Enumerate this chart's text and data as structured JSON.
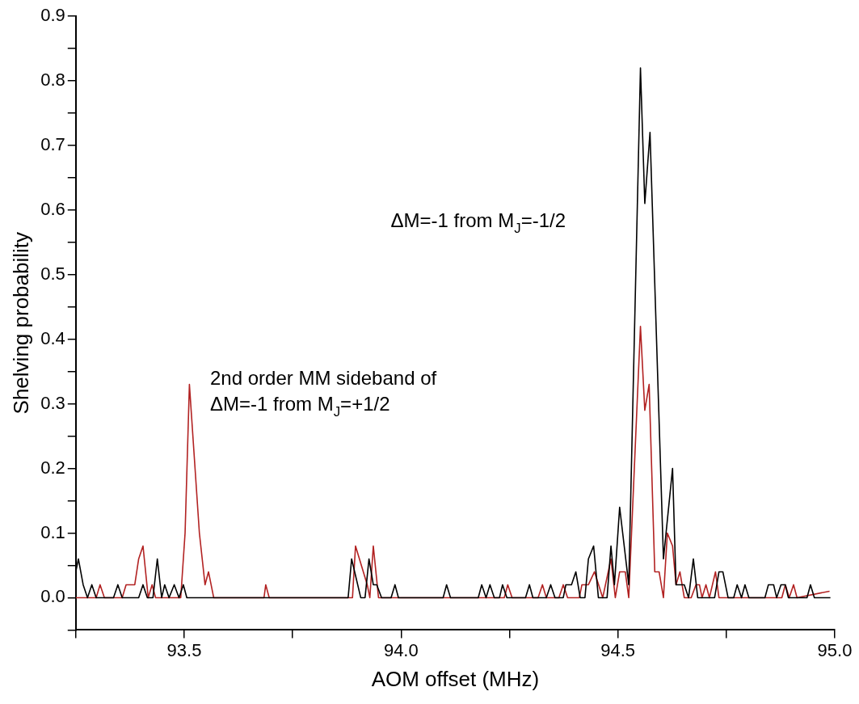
{
  "chart_data": {
    "type": "line",
    "xlabel": "AOM offset (MHz)",
    "ylabel": "Shelving probability",
    "xlim": [
      93.25,
      95.0
    ],
    "ylim": [
      -0.05,
      0.9
    ],
    "xticks": [
      {
        "value": 93.25,
        "label": null
      },
      {
        "value": 93.5,
        "label": "93.5"
      },
      {
        "value": 93.75,
        "label": null
      },
      {
        "value": 94.0,
        "label": "94.0"
      },
      {
        "value": 94.25,
        "label": null
      },
      {
        "value": 94.5,
        "label": "94.5"
      },
      {
        "value": 94.75,
        "label": null
      },
      {
        "value": 95.0,
        "label": "95.0"
      }
    ],
    "yticks": [
      {
        "value": -0.05,
        "label": null
      },
      {
        "value": 0,
        "label": "0.0"
      },
      {
        "value": 0.05,
        "label": null
      },
      {
        "value": 0.1,
        "label": "0.1"
      },
      {
        "value": 0.15,
        "label": null
      },
      {
        "value": 0.2,
        "label": "0.2"
      },
      {
        "value": 0.25,
        "label": null
      },
      {
        "value": 0.3,
        "label": "0.3"
      },
      {
        "value": 0.35,
        "label": null
      },
      {
        "value": 0.4,
        "label": "0.4"
      },
      {
        "value": 0.45,
        "label": null
      },
      {
        "value": 0.5,
        "label": "0.5"
      },
      {
        "value": 0.55,
        "label": null
      },
      {
        "value": 0.6,
        "label": "0.6"
      },
      {
        "value": 0.65,
        "label": null
      },
      {
        "value": 0.7,
        "label": "0.7"
      },
      {
        "value": 0.75,
        "label": null
      },
      {
        "value": 0.8,
        "label": "0.8"
      },
      {
        "value": 0.85,
        "label": null
      },
      {
        "value": 0.9,
        "label": "0.9"
      }
    ],
    "grid": false,
    "legend": false,
    "marker": "none",
    "line_style": "solid",
    "series": [
      {
        "color": "#000000",
        "x": [
          93.25,
          93.256,
          93.267,
          93.277,
          93.287,
          93.297,
          93.337,
          93.347,
          93.357,
          93.395,
          93.405,
          93.415,
          93.428,
          93.438,
          93.448,
          93.455,
          93.465,
          93.477,
          93.488,
          93.498,
          93.506,
          93.878,
          93.886,
          93.907,
          93.917,
          93.926,
          93.936,
          93.944,
          93.955,
          93.977,
          93.986,
          93.994,
          94.097,
          94.105,
          94.114,
          94.178,
          94.186,
          94.196,
          94.205,
          94.215,
          94.227,
          94.234,
          94.244,
          94.287,
          94.296,
          94.304,
          94.335,
          94.345,
          94.355,
          94.374,
          94.38,
          94.393,
          94.403,
          94.413,
          94.424,
          94.432,
          94.444,
          94.455,
          94.475,
          94.484,
          94.492,
          94.504,
          94.525,
          94.552,
          94.562,
          94.574,
          94.605,
          94.626,
          94.634,
          94.653,
          94.663,
          94.674,
          94.684,
          94.723,
          94.733,
          94.742,
          94.754,
          94.767,
          94.775,
          94.785,
          94.793,
          94.802,
          94.839,
          94.847,
          94.859,
          94.866,
          94.876,
          94.886,
          94.893,
          94.936,
          94.944,
          94.953,
          94.99
        ],
        "values": [
          0.04,
          0.06,
          0.02,
          0,
          0.02,
          0,
          0,
          0.02,
          0,
          0,
          0.02,
          0,
          0,
          0.06,
          0,
          0.02,
          0,
          0.02,
          0,
          0.02,
          0,
          0,
          0.06,
          0,
          0,
          0.06,
          0.02,
          0.02,
          0,
          0,
          0.02,
          0,
          0,
          0.02,
          0,
          0,
          0.02,
          0,
          0.02,
          0,
          0,
          0.02,
          0,
          0,
          0.02,
          0,
          0,
          0.02,
          0,
          0,
          0.02,
          0.02,
          0.04,
          0,
          0,
          0.06,
          0.08,
          0,
          0,
          0.08,
          0.02,
          0.14,
          0.02,
          0.82,
          0.61,
          0.72,
          0.06,
          0.2,
          0.02,
          0.02,
          0,
          0.06,
          0,
          0,
          0.04,
          0.04,
          0,
          0,
          0.02,
          0,
          0.02,
          0,
          0,
          0.02,
          0.02,
          0,
          0.02,
          0.02,
          0,
          0,
          0.02,
          0,
          0
        ]
      },
      {
        "color": "#b22222",
        "x": [
          93.25,
          93.297,
          93.306,
          93.316,
          93.357,
          93.366,
          93.386,
          93.395,
          93.405,
          93.417,
          93.426,
          93.434,
          93.492,
          93.502,
          93.512,
          93.535,
          93.548,
          93.556,
          93.568,
          93.684,
          93.688,
          93.696,
          93.888,
          93.895,
          93.922,
          93.928,
          93.936,
          93.948,
          94.238,
          94.246,
          94.256,
          94.316,
          94.326,
          94.335,
          94.364,
          94.374,
          94.384,
          94.411,
          94.417,
          94.432,
          94.446,
          94.465,
          94.484,
          94.494,
          94.504,
          94.517,
          94.525,
          94.552,
          94.562,
          94.572,
          94.585,
          94.595,
          94.605,
          94.614,
          94.626,
          94.634,
          94.643,
          94.653,
          94.669,
          94.68,
          94.688,
          94.694,
          94.703,
          94.711,
          94.725,
          94.733,
          94.878,
          94.886,
          94.895,
          94.905,
          94.913,
          94.988
        ],
        "values": [
          0,
          0,
          0.02,
          0,
          0,
          0.02,
          0.02,
          0.06,
          0.08,
          0,
          0.02,
          0,
          0,
          0.1,
          0.33,
          0.1,
          0.02,
          0.04,
          0,
          0,
          0.02,
          0,
          0,
          0.08,
          0.02,
          0,
          0.08,
          0,
          0,
          0.02,
          0,
          0,
          0.02,
          0,
          0,
          0.02,
          0,
          0,
          0.02,
          0.02,
          0.04,
          0,
          0.06,
          0,
          0.04,
          0.04,
          0,
          0.42,
          0.29,
          0.33,
          0.04,
          0.04,
          0,
          0.1,
          0.08,
          0.02,
          0.04,
          0,
          0,
          0.02,
          0.02,
          0,
          0.02,
          0,
          0.04,
          0,
          0,
          0.02,
          0,
          0.02,
          0,
          0.01
        ]
      }
    ],
    "annotations": [
      "ΔM=-1 from M$_{J}$=-1/2",
      "2nd order MM sideband of\nΔM=-1 from M$_{J}$=+1/2"
    ]
  }
}
